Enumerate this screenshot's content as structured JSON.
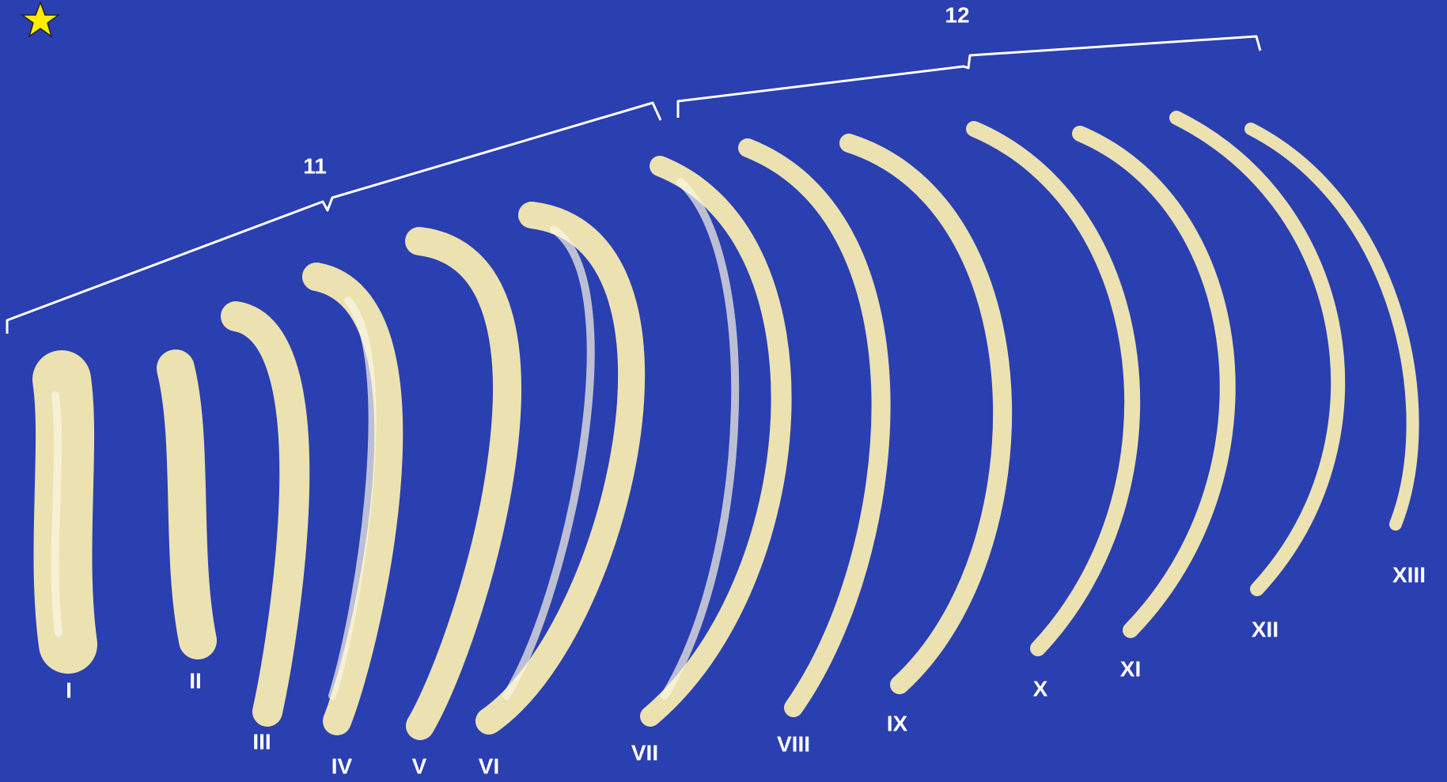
{
  "bracket_labels": [
    "11",
    "12"
  ],
  "rib_labels": [
    "I",
    "II",
    "III",
    "IV",
    "V",
    "VI",
    "VII",
    "VIII",
    "IX",
    "X",
    "XI",
    "XII",
    "XIII"
  ]
}
